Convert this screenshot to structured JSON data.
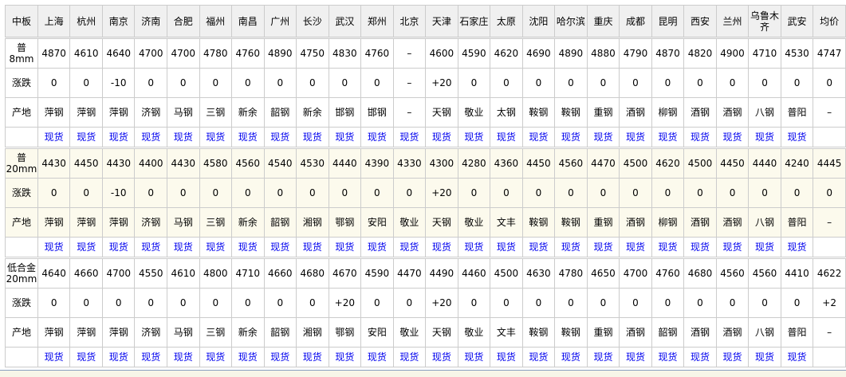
{
  "header": {
    "corner": "中板",
    "cities": [
      "上海",
      "杭州",
      "南京",
      "济南",
      "合肥",
      "福州",
      "南昌",
      "广州",
      "长沙",
      "武汉",
      "郑州",
      "北京",
      "天津",
      "石家庄",
      "太原",
      "沈阳",
      "哈尔滨",
      "重庆",
      "成都",
      "昆明",
      "西安",
      "兰州",
      "乌鲁木齐",
      "武安",
      "均价"
    ]
  },
  "row_labels": {
    "change": "涨跌",
    "origin": "产地"
  },
  "link_label": "现货",
  "colors": {
    "link": "#0000ee",
    "header_bg": "#f0f0f0",
    "highlight_bg": "#fcfaed",
    "border": "#cccccc"
  },
  "blocks": [
    {
      "spec": "普8mm",
      "prices": [
        "4870",
        "4610",
        "4640",
        "4700",
        "4700",
        "4780",
        "4760",
        "4890",
        "4750",
        "4830",
        "4760",
        "–",
        "4600",
        "4590",
        "4620",
        "4690",
        "4890",
        "4880",
        "4790",
        "4870",
        "4820",
        "4900",
        "4710",
        "4530",
        "4747"
      ],
      "changes": [
        "0",
        "0",
        "-10",
        "0",
        "0",
        "0",
        "0",
        "0",
        "0",
        "0",
        "0",
        "–",
        "+20",
        "0",
        "0",
        "0",
        "0",
        "0",
        "0",
        "0",
        "0",
        "0",
        "0",
        "0",
        "0"
      ],
      "origins": [
        "萍钢",
        "萍钢",
        "萍钢",
        "济钢",
        "马钢",
        "三钢",
        "新余",
        "韶钢",
        "新余",
        "邯钢",
        "邯钢",
        "–",
        "天钢",
        "敬业",
        "太钢",
        "鞍钢",
        "鞍钢",
        "重钢",
        "酒钢",
        "柳钢",
        "酒钢",
        "酒钢",
        "八钢",
        "普阳",
        "–"
      ]
    },
    {
      "spec": "普20mm",
      "prices": [
        "4430",
        "4450",
        "4430",
        "4400",
        "4430",
        "4580",
        "4560",
        "4540",
        "4530",
        "4440",
        "4390",
        "4330",
        "4300",
        "4280",
        "4360",
        "4450",
        "4560",
        "4470",
        "4500",
        "4620",
        "4500",
        "4450",
        "4440",
        "4240",
        "4445"
      ],
      "changes": [
        "0",
        "0",
        "-10",
        "0",
        "0",
        "0",
        "0",
        "0",
        "0",
        "0",
        "0",
        "0",
        "+20",
        "0",
        "0",
        "0",
        "0",
        "0",
        "0",
        "0",
        "0",
        "0",
        "0",
        "0",
        "0"
      ],
      "origins": [
        "萍钢",
        "萍钢",
        "萍钢",
        "济钢",
        "马钢",
        "三钢",
        "新余",
        "韶钢",
        "湘钢",
        "鄂钢",
        "安阳",
        "敬业",
        "天钢",
        "敬业",
        "文丰",
        "鞍钢",
        "鞍钢",
        "重钢",
        "酒钢",
        "柳钢",
        "酒钢",
        "酒钢",
        "八钢",
        "普阳",
        "–"
      ]
    },
    {
      "spec": "低合金20mm",
      "prices": [
        "4640",
        "4660",
        "4700",
        "4550",
        "4610",
        "4800",
        "4710",
        "4660",
        "4680",
        "4670",
        "4590",
        "4470",
        "4490",
        "4460",
        "4500",
        "4630",
        "4780",
        "4650",
        "4700",
        "4760",
        "4680",
        "4560",
        "4560",
        "4410",
        "4622"
      ],
      "changes": [
        "0",
        "0",
        "0",
        "0",
        "0",
        "0",
        "0",
        "0",
        "0",
        "+20",
        "0",
        "0",
        "+20",
        "0",
        "0",
        "0",
        "0",
        "0",
        "0",
        "0",
        "0",
        "0",
        "0",
        "0",
        "+2"
      ],
      "origins": [
        "萍钢",
        "萍钢",
        "萍钢",
        "济钢",
        "马钢",
        "三钢",
        "新余",
        "韶钢",
        "湘钢",
        "鄂钢",
        "安阳",
        "敬业",
        "天钢",
        "敬业",
        "文丰",
        "鞍钢",
        "鞍钢",
        "重钢",
        "酒钢",
        "韶钢",
        "酒钢",
        "酒钢",
        "八钢",
        "普阳",
        "–"
      ]
    }
  ]
}
